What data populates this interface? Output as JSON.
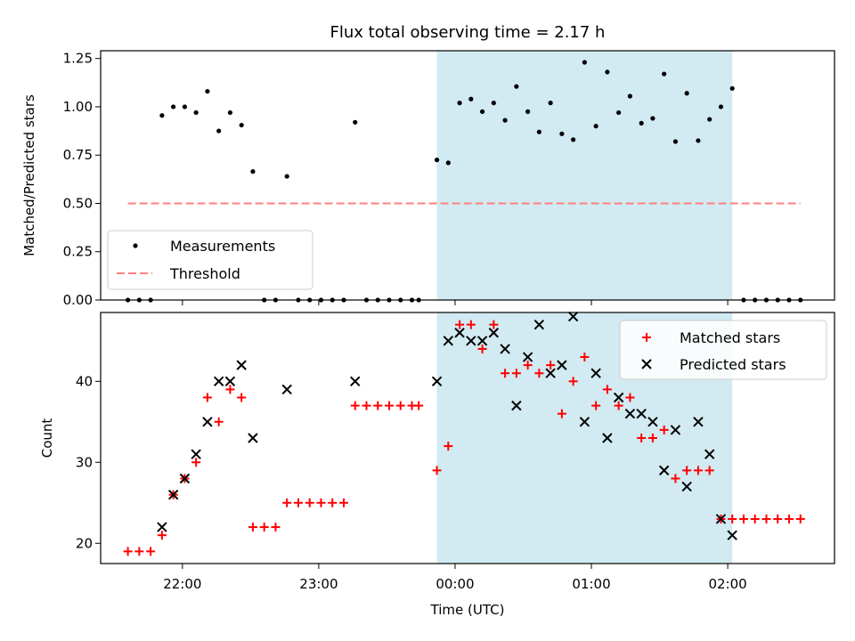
{
  "title": "Flux total observing time = 2.17 h",
  "colors": {
    "shade": "#add8e6",
    "threshold": "#ff8080",
    "matched": "#ff0000",
    "predicted": "#000000",
    "measurements": "#000000"
  },
  "chart_data": [
    {
      "type": "scatter",
      "panel": "top",
      "ylabel": "Matched/Predicted stars",
      "xlabel": "",
      "ylim": [
        0,
        1.29
      ],
      "yticks": [
        "0.00",
        "0.25",
        "0.50",
        "0.75",
        "1.00",
        "1.25"
      ],
      "xlim": [
        "21:24",
        "02:47"
      ],
      "grid": false,
      "legend": {
        "placement": "lower-left",
        "entries": [
          "Measurements",
          "Threshold"
        ]
      },
      "shaded_interval": [
        "23:52",
        "02:02"
      ],
      "threshold": {
        "name": "Threshold",
        "value": 0.5,
        "x": [
          "21:36",
          "02:32"
        ]
      },
      "series": [
        {
          "name": "Measurements",
          "points": [
            [
              "21:36",
              0.0
            ],
            [
              "21:41",
              0.0
            ],
            [
              "21:46",
              0.0
            ],
            [
              "21:51",
              0.955
            ],
            [
              "21:56",
              1.0
            ],
            [
              "22:01",
              1.0
            ],
            [
              "22:06",
              0.97
            ],
            [
              "22:11",
              1.08
            ],
            [
              "22:16",
              0.875
            ],
            [
              "22:21",
              0.97
            ],
            [
              "22:26",
              0.905
            ],
            [
              "22:31",
              0.665
            ],
            [
              "22:36",
              0.0
            ],
            [
              "22:41",
              0.0
            ],
            [
              "22:46",
              0.64
            ],
            [
              "22:51",
              0.0
            ],
            [
              "22:56",
              0.0
            ],
            [
              "23:01",
              0.0
            ],
            [
              "23:06",
              0.0
            ],
            [
              "23:11",
              0.0
            ],
            [
              "23:16",
              0.92
            ],
            [
              "23:21",
              0.0
            ],
            [
              "23:26",
              0.0
            ],
            [
              "23:31",
              0.0
            ],
            [
              "23:36",
              0.0
            ],
            [
              "23:41",
              0.0
            ],
            [
              "23:44",
              0.0
            ],
            [
              "23:52",
              0.725
            ],
            [
              "23:57",
              0.71
            ],
            [
              "00:02",
              1.02
            ],
            [
              "00:07",
              1.04
            ],
            [
              "00:12",
              0.975
            ],
            [
              "00:17",
              1.02
            ],
            [
              "00:22",
              0.93
            ],
            [
              "00:27",
              1.105
            ],
            [
              "00:32",
              0.975
            ],
            [
              "00:37",
              0.87
            ],
            [
              "00:42",
              1.02
            ],
            [
              "00:47",
              0.86
            ],
            [
              "00:52",
              0.83
            ],
            [
              "00:57",
              1.23
            ],
            [
              "01:02",
              0.9
            ],
            [
              "01:07",
              1.18
            ],
            [
              "01:12",
              0.97
            ],
            [
              "01:17",
              1.055
            ],
            [
              "01:22",
              0.915
            ],
            [
              "01:27",
              0.94
            ],
            [
              "01:32",
              1.17
            ],
            [
              "01:37",
              0.82
            ],
            [
              "01:42",
              1.07
            ],
            [
              "01:47",
              0.825
            ],
            [
              "01:52",
              0.935
            ],
            [
              "01:57",
              1.0
            ],
            [
              "02:02",
              1.095
            ],
            [
              "02:07",
              0.0
            ],
            [
              "02:12",
              0.0
            ],
            [
              "02:17",
              0.0
            ],
            [
              "02:22",
              0.0
            ],
            [
              "02:27",
              0.0
            ],
            [
              "02:32",
              0.0
            ]
          ]
        }
      ]
    },
    {
      "type": "scatter",
      "panel": "bottom",
      "ylabel": "Count",
      "xlabel": "Time (UTC)",
      "ylim": [
        17.5,
        48.5
      ],
      "yticks": [
        "20",
        "30",
        "40"
      ],
      "xlim": [
        "21:24",
        "02:47"
      ],
      "xticks": [
        "22:00",
        "23:00",
        "00:00",
        "01:00",
        "02:00"
      ],
      "grid": false,
      "legend": {
        "placement": "top-right",
        "entries": [
          "Matched stars",
          "Predicted stars"
        ]
      },
      "shaded_interval": [
        "23:52",
        "02:02"
      ],
      "series": [
        {
          "name": "Matched stars",
          "marker": "plus",
          "points": [
            [
              "21:36",
              19
            ],
            [
              "21:41",
              19
            ],
            [
              "21:46",
              19
            ],
            [
              "21:51",
              21
            ],
            [
              "21:56",
              26
            ],
            [
              "22:01",
              28
            ],
            [
              "22:06",
              30
            ],
            [
              "22:11",
              38
            ],
            [
              "22:16",
              35
            ],
            [
              "22:21",
              39
            ],
            [
              "22:26",
              38
            ],
            [
              "22:31",
              22
            ],
            [
              "22:36",
              22
            ],
            [
              "22:41",
              22
            ],
            [
              "22:46",
              25
            ],
            [
              "22:51",
              25
            ],
            [
              "22:56",
              25
            ],
            [
              "23:01",
              25
            ],
            [
              "23:06",
              25
            ],
            [
              "23:11",
              25
            ],
            [
              "23:16",
              37
            ],
            [
              "23:21",
              37
            ],
            [
              "23:26",
              37
            ],
            [
              "23:31",
              37
            ],
            [
              "23:36",
              37
            ],
            [
              "23:41",
              37
            ],
            [
              "23:44",
              37
            ],
            [
              "23:52",
              29
            ],
            [
              "23:57",
              32
            ],
            [
              "00:02",
              47
            ],
            [
              "00:07",
              47
            ],
            [
              "00:12",
              44
            ],
            [
              "00:17",
              47
            ],
            [
              "00:22",
              41
            ],
            [
              "00:27",
              41
            ],
            [
              "00:32",
              42
            ],
            [
              "00:37",
              41
            ],
            [
              "00:42",
              42
            ],
            [
              "00:47",
              36
            ],
            [
              "00:52",
              40
            ],
            [
              "00:57",
              43
            ],
            [
              "01:02",
              37
            ],
            [
              "01:07",
              39
            ],
            [
              "01:12",
              37
            ],
            [
              "01:17",
              38
            ],
            [
              "01:22",
              33
            ],
            [
              "01:27",
              33
            ],
            [
              "01:32",
              34
            ],
            [
              "01:37",
              28
            ],
            [
              "01:42",
              29
            ],
            [
              "01:47",
              29
            ],
            [
              "01:52",
              29
            ],
            [
              "01:57",
              23
            ],
            [
              "02:02",
              23
            ],
            [
              "02:07",
              23
            ],
            [
              "02:12",
              23
            ],
            [
              "02:17",
              23
            ],
            [
              "02:22",
              23
            ],
            [
              "02:27",
              23
            ],
            [
              "02:32",
              23
            ]
          ]
        },
        {
          "name": "Predicted stars",
          "marker": "x",
          "points": [
            [
              "21:51",
              22
            ],
            [
              "21:56",
              26
            ],
            [
              "22:01",
              28
            ],
            [
              "22:06",
              31
            ],
            [
              "22:11",
              35
            ],
            [
              "22:16",
              40
            ],
            [
              "22:21",
              40
            ],
            [
              "22:26",
              42
            ],
            [
              "22:31",
              33
            ],
            [
              "22:46",
              39
            ],
            [
              "23:16",
              40
            ],
            [
              "23:52",
              40
            ],
            [
              "23:57",
              45
            ],
            [
              "00:02",
              46
            ],
            [
              "00:07",
              45
            ],
            [
              "00:12",
              45
            ],
            [
              "00:17",
              46
            ],
            [
              "00:22",
              44
            ],
            [
              "00:27",
              37
            ],
            [
              "00:32",
              43
            ],
            [
              "00:37",
              47
            ],
            [
              "00:42",
              41
            ],
            [
              "00:47",
              42
            ],
            [
              "00:52",
              48
            ],
            [
              "00:57",
              35
            ],
            [
              "01:02",
              41
            ],
            [
              "01:07",
              33
            ],
            [
              "01:12",
              38
            ],
            [
              "01:17",
              36
            ],
            [
              "01:22",
              36
            ],
            [
              "01:27",
              35
            ],
            [
              "01:32",
              29
            ],
            [
              "01:37",
              34
            ],
            [
              "01:42",
              27
            ],
            [
              "01:47",
              35
            ],
            [
              "01:52",
              31
            ],
            [
              "01:57",
              23
            ],
            [
              "02:02",
              21
            ]
          ]
        }
      ]
    }
  ]
}
